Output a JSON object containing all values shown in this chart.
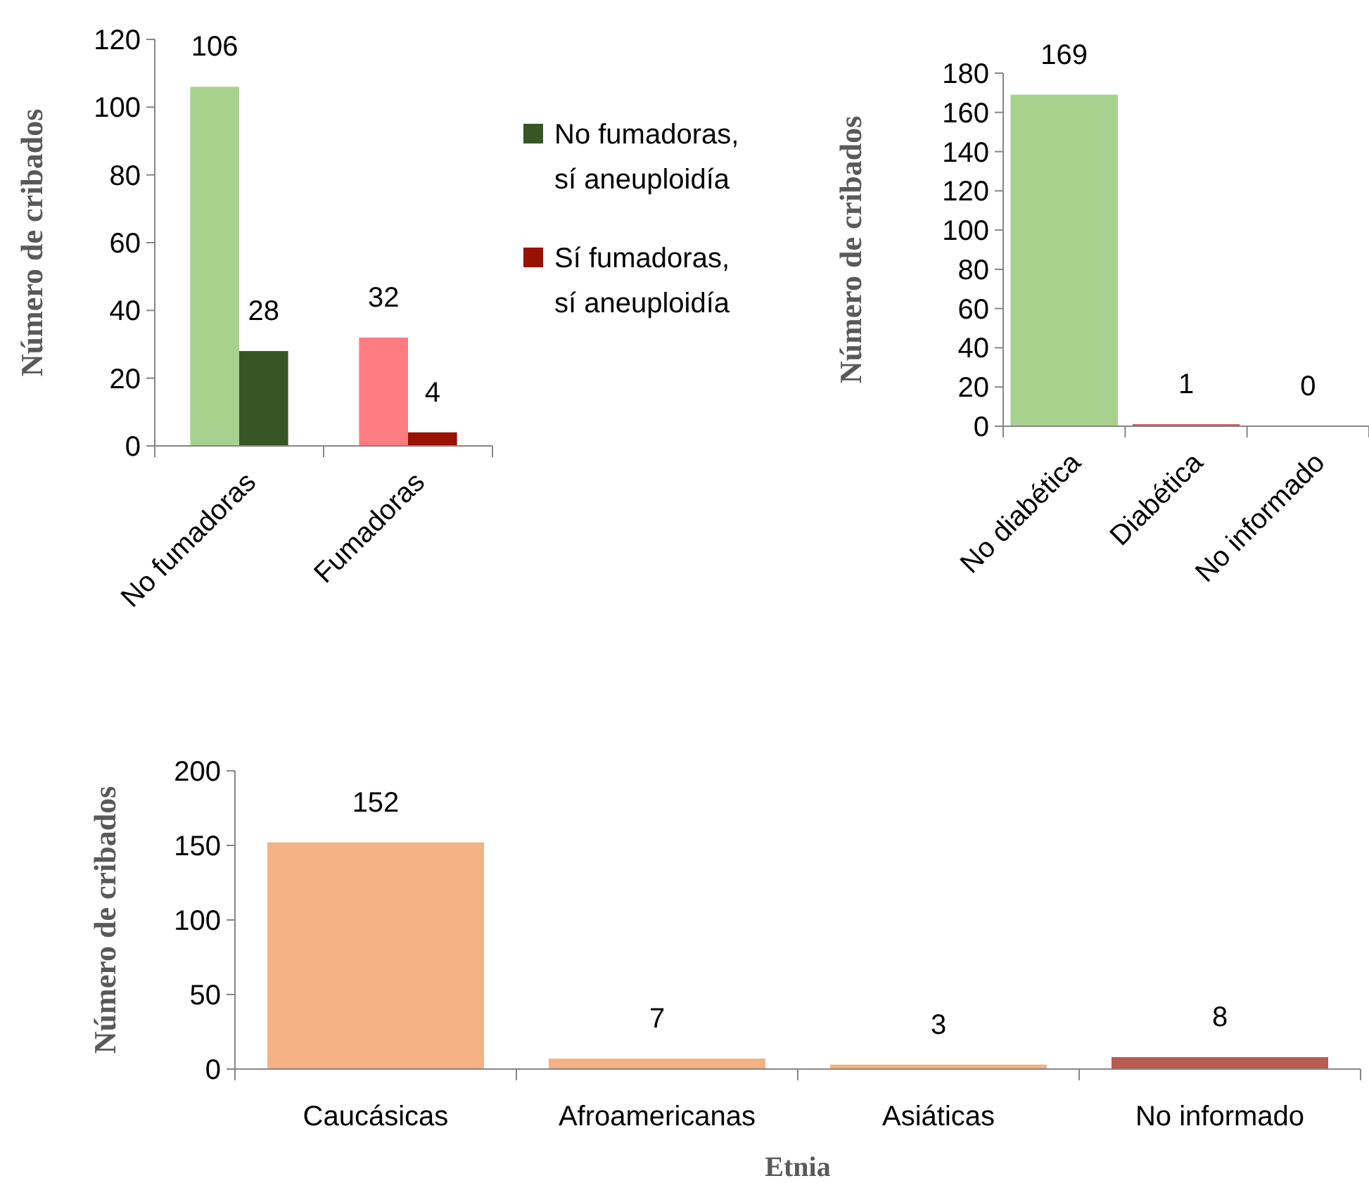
{
  "chart_data": [
    {
      "type": "bar",
      "categories": [
        "No fumadoras",
        "Fumadoras"
      ],
      "ylabel": "Número de cribados",
      "ylim": [
        0,
        120
      ],
      "yticks": [
        0,
        20,
        40,
        60,
        80,
        100,
        120
      ],
      "data_labels": true,
      "legend": "right",
      "series": [
        {
          "color": "#a9d18e",
          "values": [
            106,
            null
          ]
        },
        {
          "name": "No fumadoras, sí aneuploidía",
          "color": "#375623",
          "values": [
            28,
            null
          ]
        },
        {
          "color": "#ff7c80",
          "values": [
            null,
            32
          ]
        },
        {
          "name": "Sí fumadoras, sí aneuploidía",
          "color": "#991100",
          "values": [
            null,
            4
          ]
        }
      ]
    },
    {
      "type": "bar",
      "categories": [
        "No diabética",
        "Diabética",
        "No informado"
      ],
      "ylabel": "Número de cribados",
      "ylim": [
        0,
        180
      ],
      "yticks": [
        0,
        20,
        40,
        60,
        80,
        100,
        120,
        140,
        160,
        180
      ],
      "data_labels": true,
      "values": [
        169,
        1,
        0
      ],
      "colors": [
        "#a9d18e",
        "#c0504d",
        "#c0504d"
      ]
    },
    {
      "type": "bar",
      "categories": [
        "Caucásicas",
        "Afroamericanas",
        "Asiáticas",
        "No informado"
      ],
      "xlabel": "Etnia",
      "ylabel": "Número de cribados",
      "ylim": [
        0,
        200
      ],
      "yticks": [
        0,
        50,
        100,
        150,
        200
      ],
      "data_labels": true,
      "values": [
        152,
        7,
        3,
        8
      ],
      "colors": [
        "#f4b183",
        "#f4b183",
        "#f4b183",
        "#b85c50"
      ]
    }
  ]
}
